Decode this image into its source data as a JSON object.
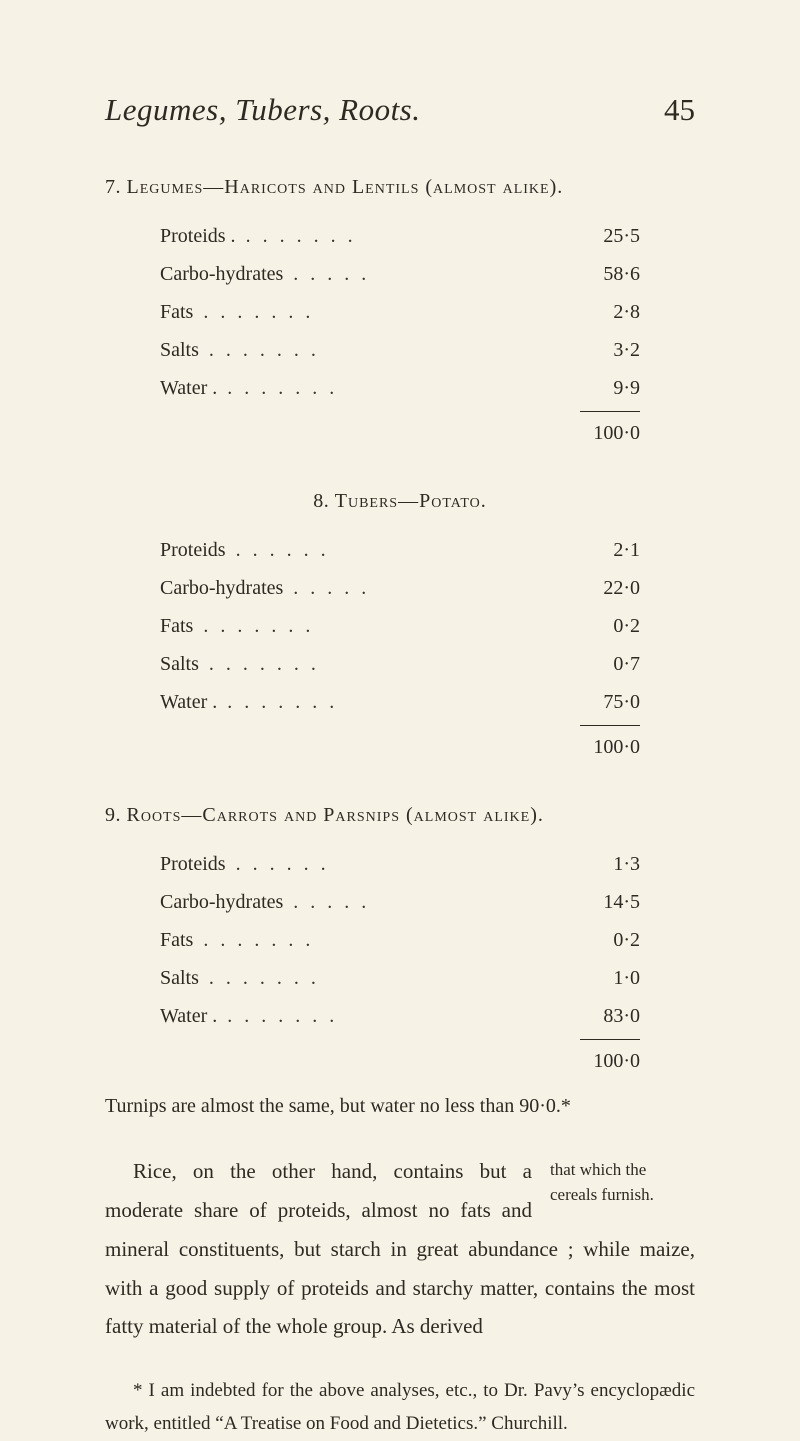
{
  "colors": {
    "background": "#f6f2e6",
    "text": "#2e2a22",
    "rule": "#2e2a22"
  },
  "typography": {
    "body_family": "Georgia, 'Times New Roman', serif",
    "title_italic_size_pt": 23,
    "page_number_size_pt": 23,
    "section_title_size_pt": 15,
    "table_row_size_pt": 15,
    "body_size_pt": 16,
    "sidenote_size_pt": 13,
    "footnote_size_pt": 14
  },
  "page": {
    "running_title": "Legumes, Tubers, Roots.",
    "number": "45"
  },
  "sections": [
    {
      "number": "7.",
      "title_caps": "Legumes—Haricots and Lentils (almost alike).",
      "rows": [
        {
          "label": "Proteids .",
          "value": "25·5"
        },
        {
          "label": "Carbo-hydrates",
          "value": "58·6"
        },
        {
          "label": "Fats",
          "value": "2·8"
        },
        {
          "label": "Salts",
          "value": "3·2"
        },
        {
          "label": "Water .",
          "value": "9·9"
        }
      ],
      "total": "100·0"
    },
    {
      "number": "8.",
      "title_caps": "Tubers—Potato.",
      "rows": [
        {
          "label": "Proteids",
          "value": "2·1"
        },
        {
          "label": "Carbo-hydrates",
          "value": "22·0"
        },
        {
          "label": "Fats",
          "value": "0·2"
        },
        {
          "label": "Salts",
          "value": "0·7"
        },
        {
          "label": "Water .",
          "value": "75·0"
        }
      ],
      "total": "100·0"
    },
    {
      "number": "9.",
      "title_caps": "Roots—Carrots and Parsnips (almost alike).",
      "rows": [
        {
          "label": "Proteids",
          "value": "1·3"
        },
        {
          "label": "Carbo-hydrates",
          "value": "14·5"
        },
        {
          "label": "Fats",
          "value": "0·2"
        },
        {
          "label": "Salts",
          "value": "1·0"
        },
        {
          "label": "Water .",
          "value": "83·0"
        }
      ],
      "total": "100·0"
    }
  ],
  "turnips_note": "Turnips are almost the same, but water no less than 90·0.*",
  "body": {
    "sidenote": "that which the cereals furnish.",
    "text_before_sidenote": "Rice, on the other hand, contains but a moderate share of proteids, almost no fats and mineral constituents, but starch in great abundance ; while maize, with a good supply of proteids and starchy matter, contains the most fatty material of the whole group.  As derived"
  },
  "footnote": "* I am indebted for the above analyses, etc., to Dr. Pavy’s encyclopædic work, entitled “A Treatise on Food and Dietetics.” Churchill."
}
